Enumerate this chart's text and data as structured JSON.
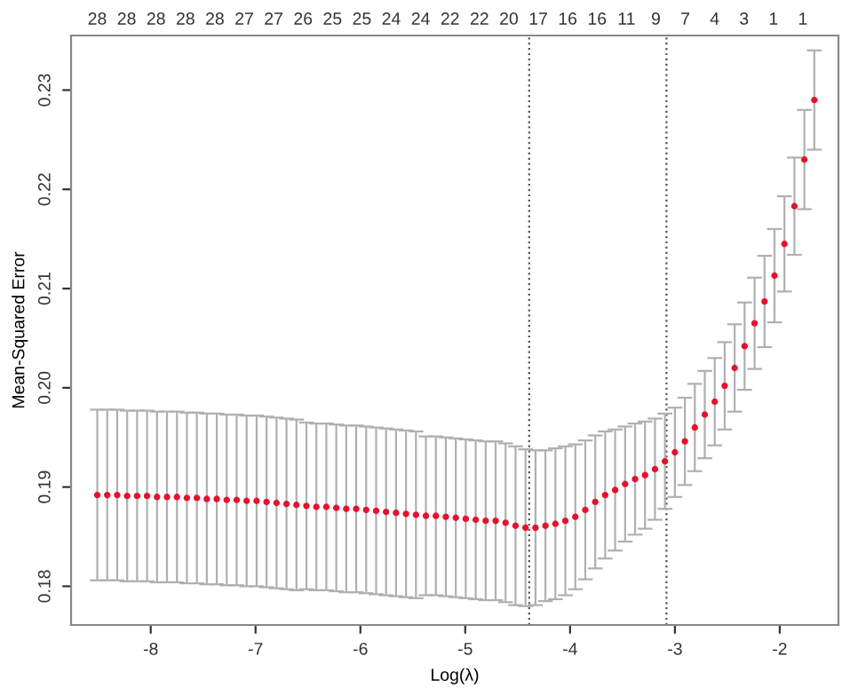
{
  "chart_data": {
    "type": "scatter",
    "xlabel": "Log(λ)",
    "ylabel": "Mean-Squared Error",
    "x": [
      -8.51,
      -8.415,
      -8.32,
      -8.225,
      -8.13,
      -8.035,
      -7.94,
      -7.845,
      -7.75,
      -7.655,
      -7.56,
      -7.465,
      -7.37,
      -7.275,
      -7.18,
      -7.085,
      -6.99,
      -6.895,
      -6.8,
      -6.705,
      -6.61,
      -6.515,
      -6.42,
      -6.325,
      -6.23,
      -6.135,
      -6.04,
      -5.945,
      -5.85,
      -5.755,
      -5.66,
      -5.565,
      -5.47,
      -5.375,
      -5.28,
      -5.185,
      -5.09,
      -4.995,
      -4.9,
      -4.805,
      -4.71,
      -4.615,
      -4.52,
      -4.425,
      -4.33,
      -4.235,
      -4.14,
      -4.045,
      -3.95,
      -3.855,
      -3.76,
      -3.665,
      -3.57,
      -3.475,
      -3.38,
      -3.285,
      -3.19,
      -3.095,
      -3.0,
      -2.905,
      -2.81,
      -2.715,
      -2.62,
      -2.525,
      -2.43,
      -2.335,
      -2.24,
      -2.145,
      -2.05,
      -1.955,
      -1.86,
      -1.765,
      -1.67
    ],
    "series": [
      {
        "color": "#e8112d",
        "values": [
          0.1892,
          0.1892,
          0.1892,
          0.1891,
          0.1891,
          0.1891,
          0.189,
          0.189,
          0.189,
          0.1889,
          0.1889,
          0.1888,
          0.1888,
          0.1887,
          0.1887,
          0.1886,
          0.1886,
          0.1885,
          0.1884,
          0.1883,
          0.1882,
          0.1881,
          0.188,
          0.188,
          0.1879,
          0.1878,
          0.1878,
          0.1877,
          0.1876,
          0.1875,
          0.1874,
          0.1873,
          0.1872,
          0.1871,
          0.1871,
          0.187,
          0.1869,
          0.1868,
          0.1867,
          0.1866,
          0.1866,
          0.1864,
          0.1861,
          0.1859,
          0.1859,
          0.1861,
          0.1863,
          0.1866,
          0.187,
          0.1877,
          0.1885,
          0.1892,
          0.1897,
          0.1903,
          0.1908,
          0.1912,
          0.1918,
          0.1926,
          0.1935,
          0.1946,
          0.196,
          0.1973,
          0.1986,
          0.2002,
          0.202,
          0.2042,
          0.2065,
          0.2087,
          0.2113,
          0.2145,
          0.2183,
          0.223,
          0.229
        ],
        "errors": [
          0.0086,
          0.0086,
          0.0086,
          0.0086,
          0.0086,
          0.0086,
          0.0086,
          0.0086,
          0.0086,
          0.0086,
          0.0086,
          0.0086,
          0.0086,
          0.0086,
          0.0086,
          0.0086,
          0.0086,
          0.0086,
          0.0086,
          0.0086,
          0.0086,
          0.0084,
          0.0084,
          0.0084,
          0.0084,
          0.0084,
          0.0084,
          0.0084,
          0.0084,
          0.0084,
          0.0084,
          0.0084,
          0.0084,
          0.008,
          0.008,
          0.008,
          0.008,
          0.008,
          0.008,
          0.008,
          0.008,
          0.008,
          0.008,
          0.0079,
          0.0078,
          0.0076,
          0.0076,
          0.0075,
          0.0073,
          0.007,
          0.0067,
          0.0064,
          0.0061,
          0.0058,
          0.0056,
          0.0054,
          0.0051,
          0.0048,
          0.0045,
          0.0044,
          0.0044,
          0.0044,
          0.0044,
          0.0044,
          0.0044,
          0.0044,
          0.0046,
          0.0046,
          0.0047,
          0.0048,
          0.0049,
          0.005,
          0.005
        ]
      }
    ],
    "marker": "circle",
    "xlim": [
      -8.76,
      -1.44
    ],
    "xticks": [
      {
        "value": -8,
        "label": "-8"
      },
      {
        "value": -7,
        "label": "-7"
      },
      {
        "value": -6,
        "label": "-6"
      },
      {
        "value": -5,
        "label": "-5"
      },
      {
        "value": -4,
        "label": "-4"
      },
      {
        "value": -3,
        "label": "-3"
      },
      {
        "value": -2,
        "label": "-2"
      }
    ],
    "ylim": [
      0.1761,
      0.2355
    ],
    "yticks": [
      {
        "value": 0.18,
        "label": "0.18"
      },
      {
        "value": 0.19,
        "label": "0.19"
      },
      {
        "value": 0.2,
        "label": "0.20"
      },
      {
        "value": 0.21,
        "label": "0.21"
      },
      {
        "value": 0.22,
        "label": "0.22"
      },
      {
        "value": 0.23,
        "label": "0.23"
      }
    ],
    "annotations": [
      "28",
      "28",
      "28",
      "28",
      "28",
      "27",
      "27",
      "26",
      "25",
      "25",
      "24",
      "24",
      "22",
      "22",
      "20",
      "17",
      "16",
      "16",
      "11",
      "9",
      "7",
      "4",
      "3",
      "1",
      "1"
    ],
    "ref_lines": [
      {
        "axis": "x",
        "value": -4.39,
        "color": "#555555",
        "line_style": "dotted"
      },
      {
        "axis": "x",
        "value": -3.08,
        "color": "#555555",
        "line_style": "dotted"
      }
    ],
    "grid": false
  }
}
